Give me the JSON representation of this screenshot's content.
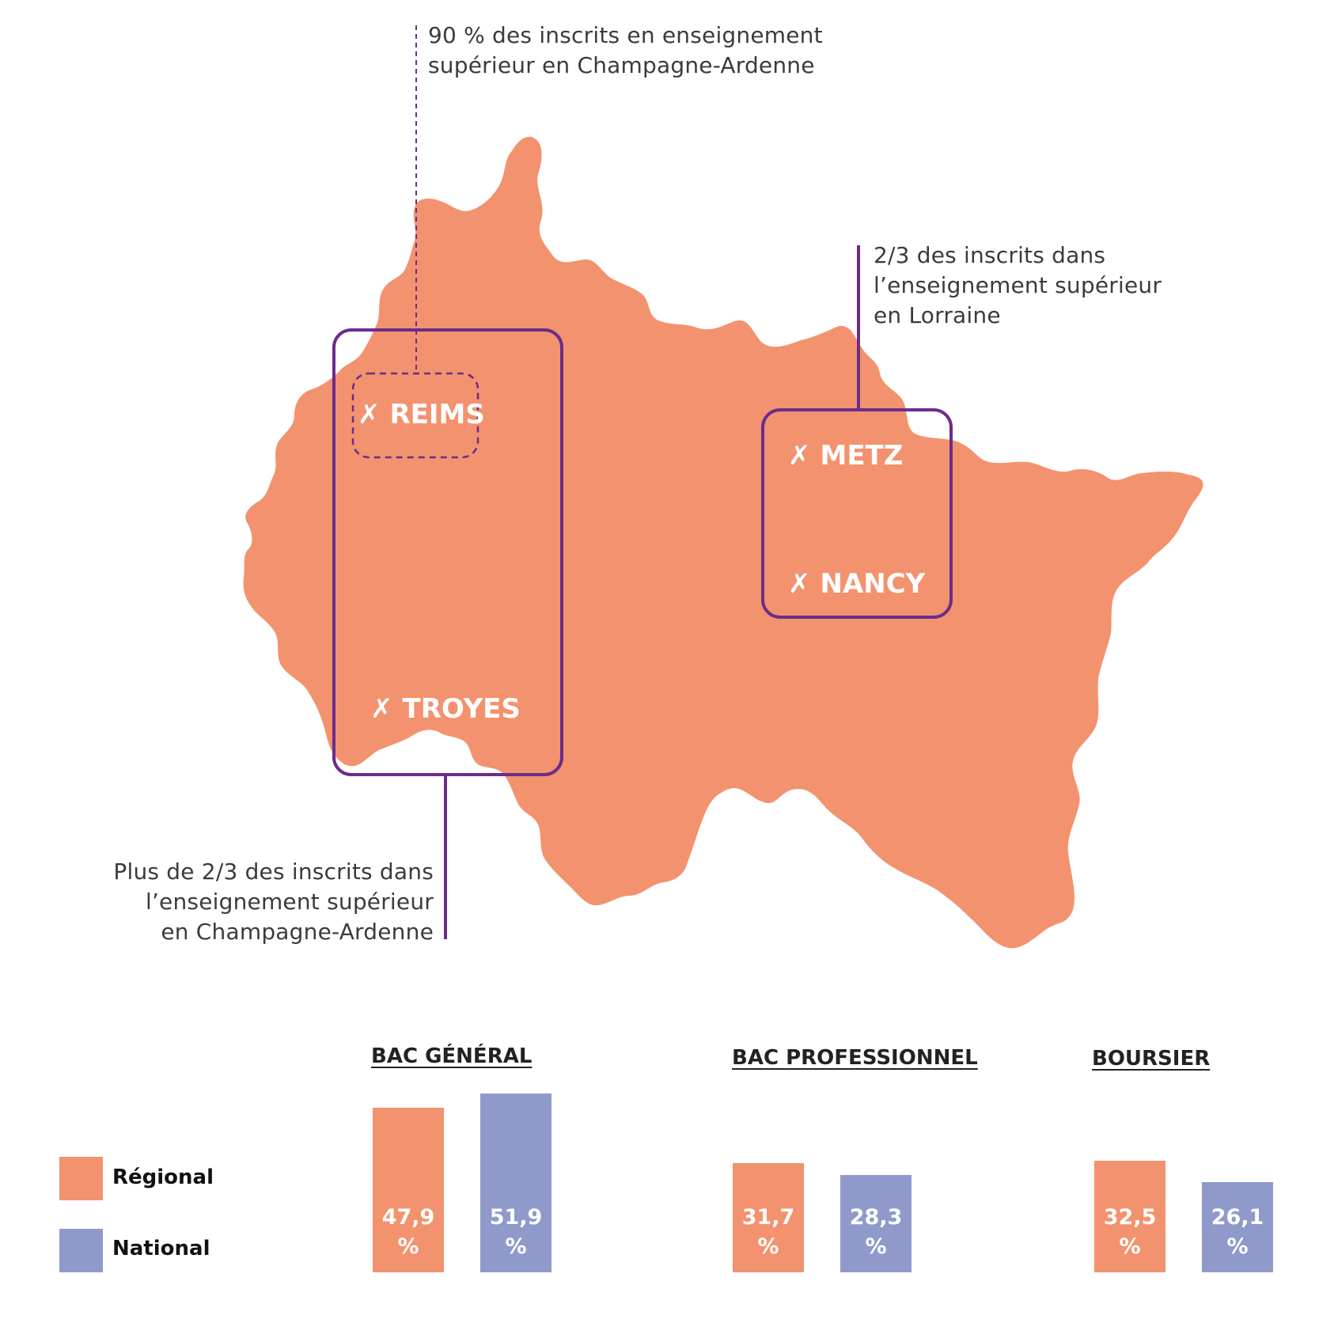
{
  "colors": {
    "region_fill": "#f3926e",
    "regional": "#f3926e",
    "national": "#8f9acb",
    "frame": "#6b2c8a",
    "text": "#3b3b3b"
  },
  "annotations": {
    "reims_note": [
      "90 % des inscrits en enseignement",
      "supérieur en Champagne-Ardenne"
    ],
    "lorraine_note": [
      "2/3 des inscrits dans",
      "l’enseignement supérieur",
      "en Lorraine"
    ],
    "troyes_note": [
      "Plus de 2/3 des inscrits dans",
      "l’enseignement supérieur",
      "en Champagne-Ardenne"
    ]
  },
  "cities": {
    "check_icon": "✗",
    "reims": "REIMS",
    "troyes": "TROYES",
    "metz": "METZ",
    "nancy": "NANCY"
  },
  "legend": {
    "regional": "Régional",
    "national": "National"
  },
  "chart_data": {
    "type": "bar",
    "categories": [
      "BAC GÉNÉRAL",
      "BAC PROFESSIONNEL",
      "BOURSIER"
    ],
    "series": [
      {
        "name": "Régional",
        "values": [
          47.9,
          31.7,
          32.5
        ],
        "labels": [
          "47,9",
          "31,7",
          "32,5"
        ]
      },
      {
        "name": "National",
        "values": [
          51.9,
          28.3,
          26.1
        ],
        "labels": [
          "51,9",
          "28,3",
          "26,1"
        ]
      }
    ],
    "unit": "%"
  }
}
